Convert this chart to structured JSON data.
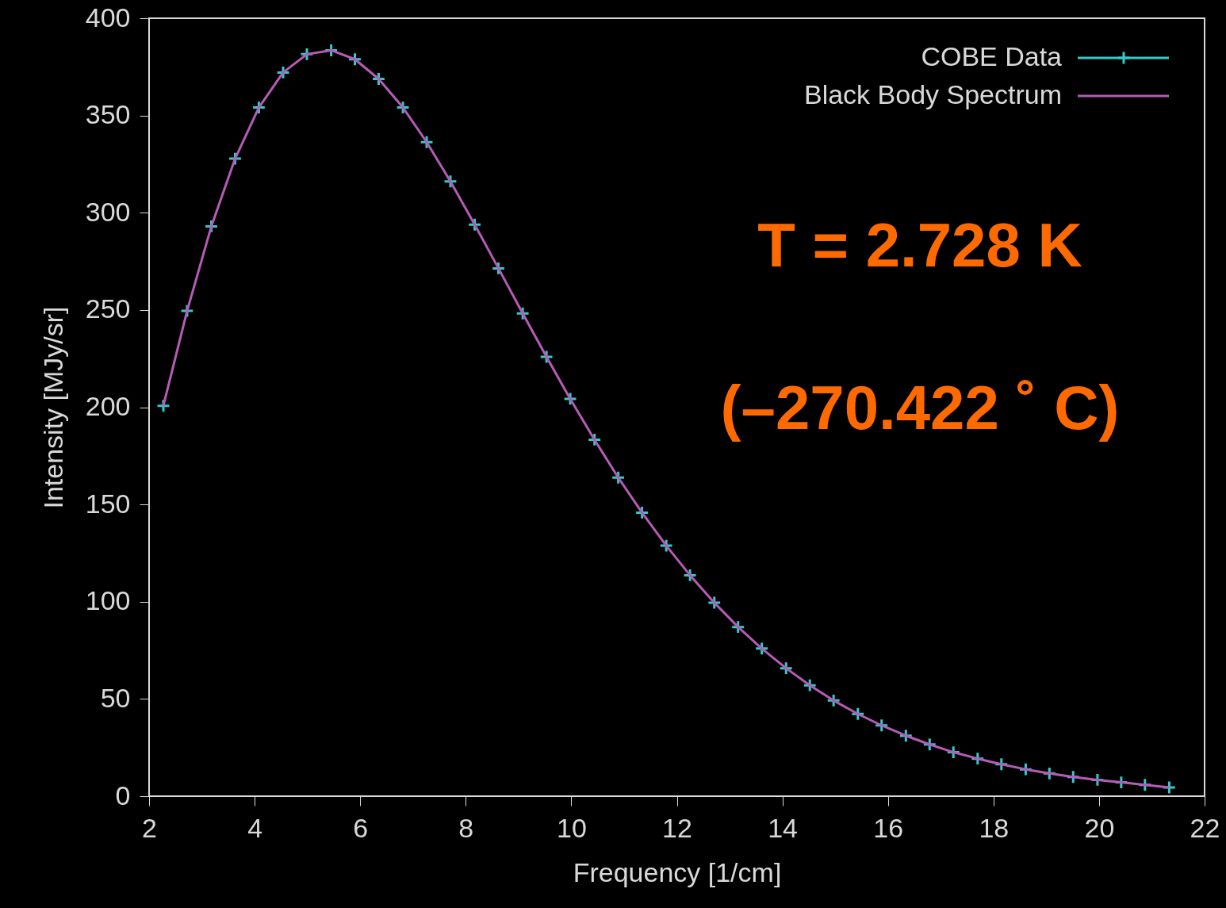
{
  "chart_data": {
    "type": "scatter",
    "xlabel": "Frequency [1/cm]",
    "ylabel": "Intensity [MJy/sr]",
    "xlim": [
      2,
      22
    ],
    "xticks": [
      2,
      4,
      6,
      8,
      10,
      12,
      14,
      16,
      18,
      20,
      22
    ],
    "ylim": [
      0,
      400
    ],
    "yticks": [
      0,
      50,
      100,
      150,
      200,
      250,
      300,
      350,
      400
    ],
    "grid": false,
    "legend": "top right",
    "annotations": [
      "T = 2.728 K",
      "(–270.422 ˚ C)"
    ],
    "series": [
      {
        "name": "COBE Data",
        "marker": "cross",
        "color": "#35c9c9",
        "x": [
          2.27,
          2.72,
          3.18,
          3.63,
          4.08,
          4.54,
          4.99,
          5.45,
          5.9,
          6.35,
          6.81,
          7.26,
          7.71,
          8.17,
          8.62,
          9.08,
          9.53,
          9.98,
          10.44,
          10.89,
          11.34,
          11.8,
          12.25,
          12.71,
          13.16,
          13.61,
          14.07,
          14.52,
          14.97,
          15.43,
          15.88,
          16.34,
          16.79,
          17.24,
          17.7,
          18.15,
          18.61,
          19.06,
          19.51,
          19.97,
          20.42,
          20.87,
          21.33
        ],
        "values": [
          200.7,
          249.5,
          293.0,
          327.8,
          354.1,
          372.1,
          381.5,
          383.5,
          378.9,
          368.8,
          354.1,
          336.3,
          316.1,
          293.9,
          271.4,
          248.2,
          225.9,
          204.3,
          183.3,
          163.8,
          145.8,
          128.8,
          113.6,
          99.5,
          87.0,
          75.9,
          65.8,
          57.0,
          49.2,
          42.3,
          36.4,
          31.1,
          26.6,
          22.6,
          19.3,
          16.4,
          13.8,
          11.7,
          9.9,
          8.4,
          7.1,
          5.8,
          4.5
        ]
      },
      {
        "name": "Black Body Spectrum",
        "type": "line",
        "line_style": "solid",
        "color": "#b65bb6",
        "x": [
          2.27,
          2.72,
          3.18,
          3.63,
          4.08,
          4.54,
          4.99,
          5.45,
          5.9,
          6.35,
          6.81,
          7.26,
          7.71,
          8.17,
          8.62,
          9.08,
          9.53,
          9.98,
          10.44,
          10.89,
          11.34,
          11.8,
          12.25,
          12.71,
          13.16,
          13.61,
          14.07,
          14.52,
          14.97,
          15.43,
          15.88,
          16.34,
          16.79,
          17.24,
          17.7,
          18.15,
          18.61,
          19.06,
          19.51,
          19.97,
          20.42,
          20.87,
          21.33
        ],
        "values": [
          200.7,
          249.5,
          293.0,
          327.8,
          354.1,
          372.1,
          381.5,
          383.5,
          378.9,
          368.8,
          354.1,
          336.3,
          316.1,
          293.9,
          271.4,
          248.2,
          225.9,
          204.3,
          183.3,
          163.8,
          145.8,
          128.8,
          113.6,
          99.5,
          87.0,
          75.9,
          65.8,
          57.0,
          49.2,
          42.3,
          36.4,
          31.1,
          26.6,
          22.6,
          19.3,
          16.4,
          13.8,
          11.7,
          9.9,
          8.4,
          7.1,
          5.8,
          4.5
        ]
      }
    ]
  }
}
